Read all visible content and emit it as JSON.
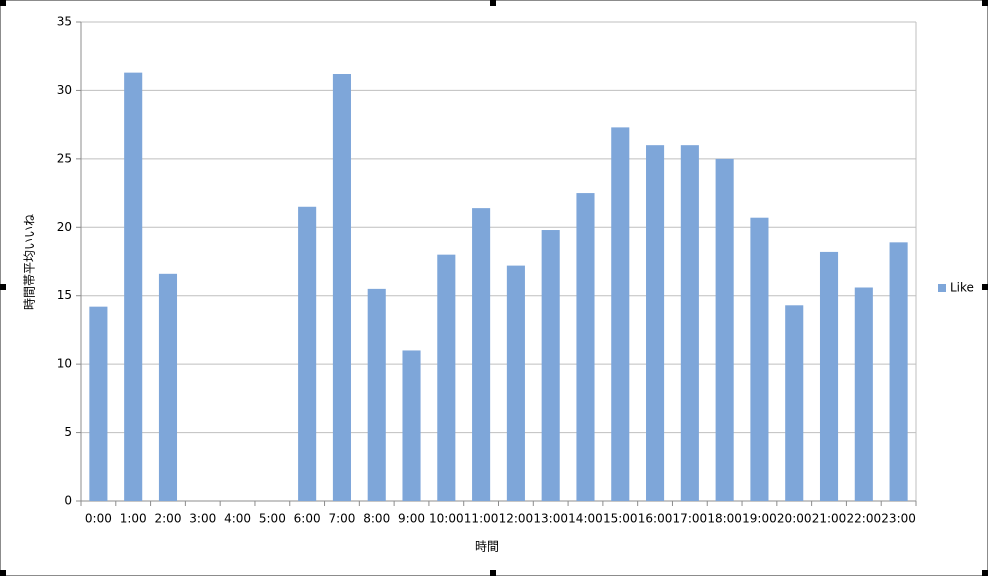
{
  "chart_data": {
    "type": "bar",
    "x_label": "時間",
    "y_label": "時間帯平均いいね",
    "categories": [
      "0:00",
      "1:00",
      "2:00",
      "3:00",
      "4:00",
      "5:00",
      "6:00",
      "7:00",
      "8:00",
      "9:00",
      "10:00",
      "11:00",
      "12:00",
      "13:00",
      "14:00",
      "15:00",
      "16:00",
      "17:00",
      "18:00",
      "19:00",
      "20:00",
      "21:00",
      "22:00",
      "23:00"
    ],
    "series": [
      {
        "name": "Like",
        "color": "#7ea6d9",
        "values": [
          14.2,
          31.3,
          16.6,
          0,
          0,
          0,
          21.5,
          31.2,
          15.5,
          11,
          18,
          21.4,
          17.2,
          19.8,
          22.5,
          27.3,
          26,
          26,
          25,
          20.7,
          14.3,
          18.2,
          15.6,
          18.9
        ]
      }
    ],
    "ylim": [
      0,
      35
    ],
    "yticks": [
      0,
      5,
      10,
      15,
      20,
      25,
      30,
      35
    ],
    "grid": true,
    "legend": "right"
  }
}
